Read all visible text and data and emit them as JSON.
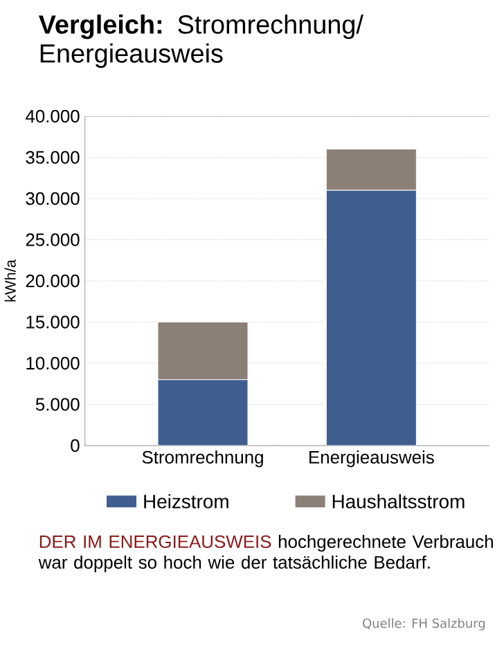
{
  "chart_data": {
    "type": "bar",
    "title": "**Vergleich:** Stromrechnung/ Energieausweis",
    "ylabel": "kWh/a",
    "categories": [
      "Stromrechnung",
      "Energieausweis"
    ],
    "series": [
      {
        "name": "Heizstrom",
        "color": "#3f5d8f",
        "values": [
          8000,
          31000
        ]
      },
      {
        "name": "Haushaltsstrom",
        "color": "#8c7f78",
        "values": [
          7000,
          5000
        ]
      }
    ],
    "stacked": true,
    "ylim": [
      0,
      40000
    ],
    "yticks": [
      {
        "value": 0,
        "label": "0"
      },
      {
        "value": 5000,
        "label": "5.000"
      },
      {
        "value": 10000,
        "label": "10.000"
      },
      {
        "value": 15000,
        "label": "15.000"
      },
      {
        "value": 20000,
        "label": "20.000"
      },
      {
        "value": 25000,
        "label": "25.000"
      },
      {
        "value": 30000,
        "label": "30.000"
      },
      {
        "value": 35000,
        "label": "35.000"
      },
      {
        "value": 40000,
        "label": "40.000"
      }
    ],
    "grid": "y",
    "legend": "bottom",
    "annotations": [
      "DER IM ENERGIEAUSWEIS",
      "hochgerechnete Verbrauch war doppelt so hoch wie der tatsächliche Bedarf.",
      "Quelle: FH Salzburg"
    ]
  }
}
